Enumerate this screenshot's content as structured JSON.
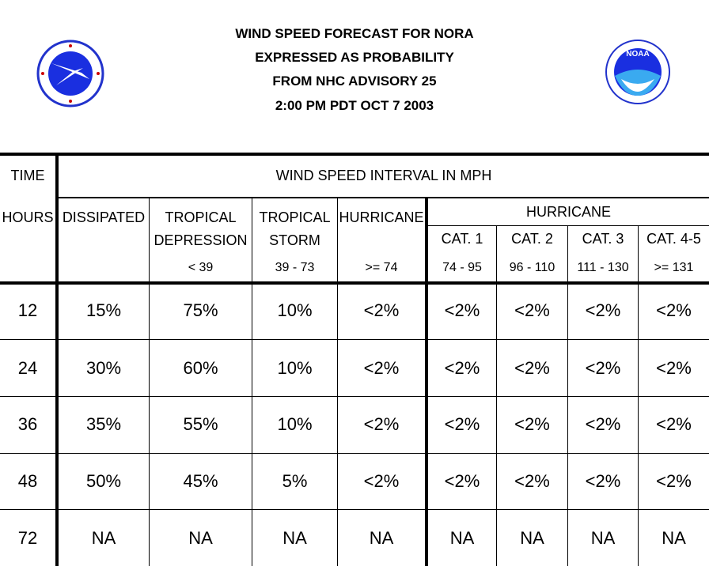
{
  "title": {
    "line1": "WIND SPEED FORECAST FOR NORA",
    "line2": "EXPRESSED AS PROBABILITY",
    "line3": "FROM NHC ADVISORY   25",
    "line4": "2:00 PM PDT OCT 7 2003"
  },
  "logos": {
    "left": {
      "icon": "nws-logo",
      "text": "NATIONAL WEATHER SERVICE"
    },
    "right": {
      "icon": "noaa-logo",
      "text": "NOAA"
    }
  },
  "header": {
    "time": "TIME",
    "interval": "WIND SPEED INTERVAL IN MPH",
    "hours": "HOURS",
    "dissipated": "DISSIPATED",
    "td_line1": "TROPICAL",
    "td_line2": "DEPRESSION",
    "td_range": "< 39",
    "ts_line1": "TROPICAL",
    "ts_line2": "STORM",
    "ts_range": "39 - 73",
    "hurricane": "HURRICANE",
    "hurricane_range": ">= 74",
    "hurricane_group": "HURRICANE",
    "cat1": "CAT. 1",
    "cat1_range": "74 - 95",
    "cat2": "CAT. 2",
    "cat2_range": "96 - 110",
    "cat3": "CAT. 3",
    "cat3_range": "111 - 130",
    "cat45": "CAT. 4-5",
    "cat45_range": ">= 131"
  },
  "rows": [
    {
      "hour": "12",
      "vals": [
        "15%",
        "75%",
        "10%",
        "<2%",
        "<2%",
        "<2%",
        "<2%",
        "<2%"
      ]
    },
    {
      "hour": "24",
      "vals": [
        "30%",
        "60%",
        "10%",
        "<2%",
        "<2%",
        "<2%",
        "<2%",
        "<2%"
      ]
    },
    {
      "hour": "36",
      "vals": [
        "35%",
        "55%",
        "10%",
        "<2%",
        "<2%",
        "<2%",
        "<2%",
        "<2%"
      ]
    },
    {
      "hour": "48",
      "vals": [
        "50%",
        "45%",
        "5%",
        "<2%",
        "<2%",
        "<2%",
        "<2%",
        "<2%"
      ]
    },
    {
      "hour": "72",
      "vals": [
        "NA",
        "NA",
        "NA",
        "NA",
        "NA",
        "NA",
        "NA",
        "NA"
      ]
    }
  ]
}
